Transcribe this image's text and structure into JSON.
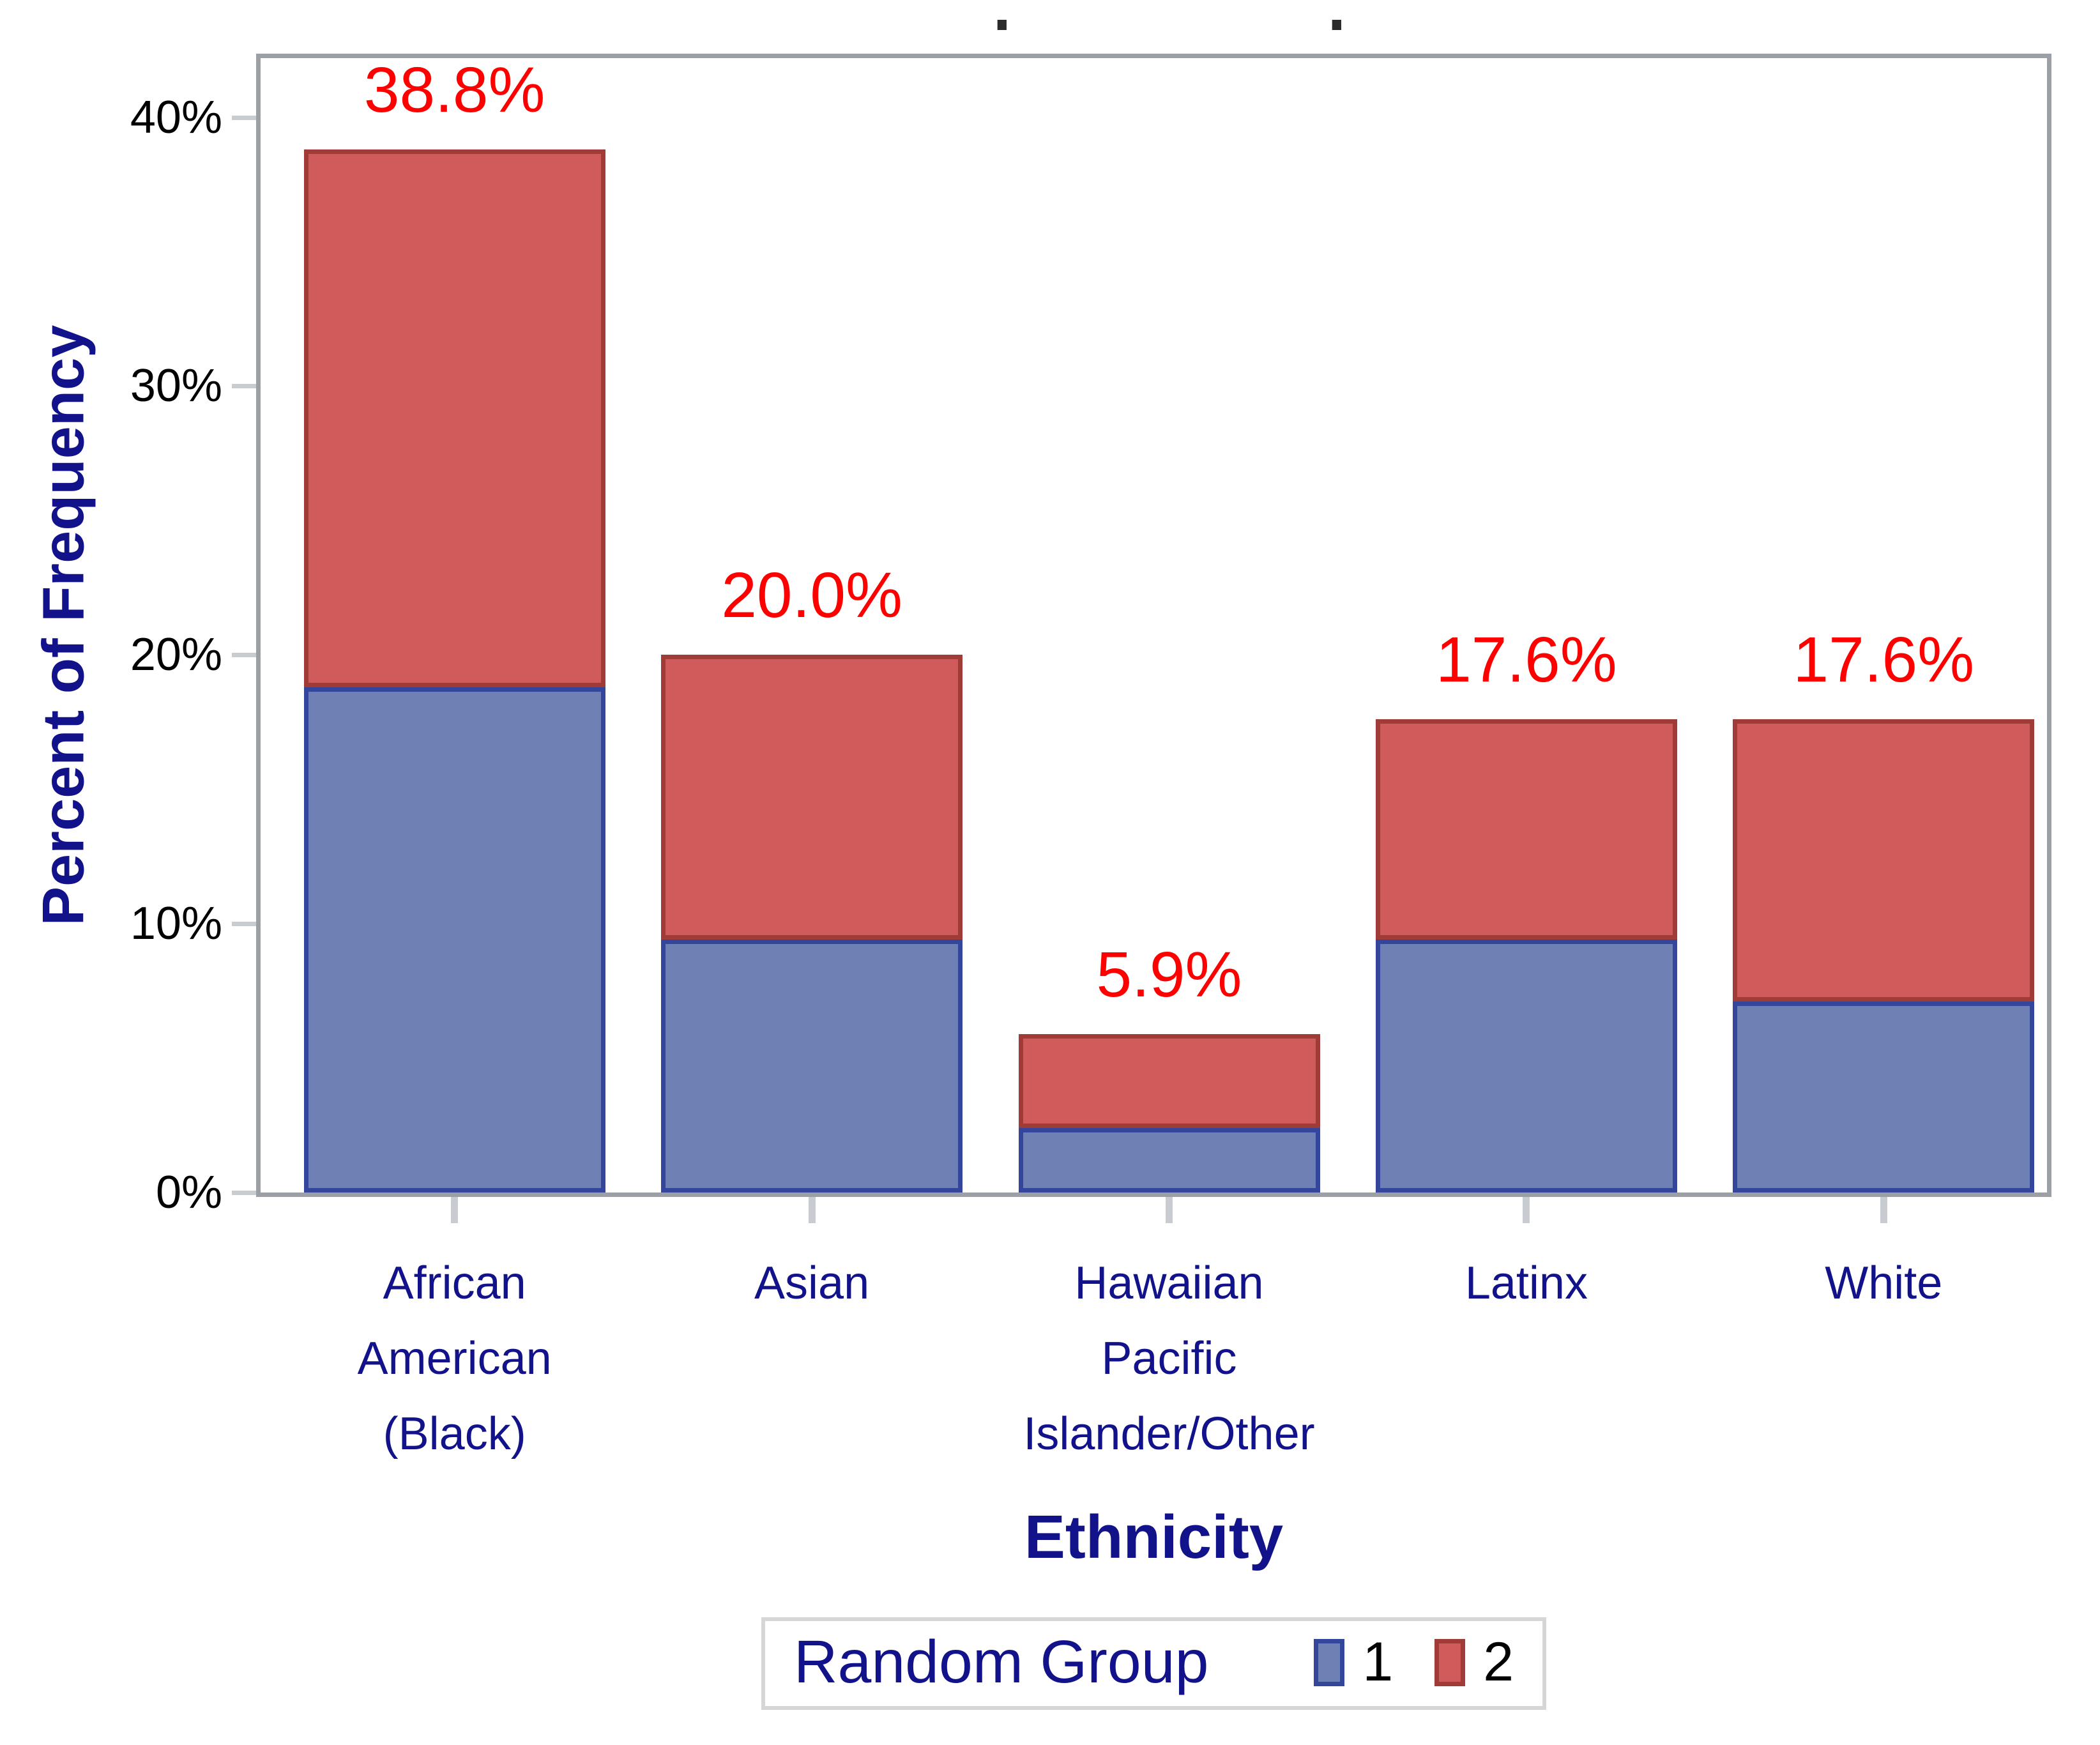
{
  "title_dots": [
    ".",
    "."
  ],
  "chart_data": {
    "type": "bar",
    "stacked": true,
    "title": "",
    "xlabel": "Ethnicity",
    "ylabel": "Percent of Frequency",
    "ylim": [
      0,
      42.2
    ],
    "grid": false,
    "legend_position": "bottom",
    "categories": [
      {
        "lines": [
          "African",
          "American",
          "(Black)"
        ]
      },
      {
        "lines": [
          "Asian"
        ]
      },
      {
        "lines": [
          "Hawaiian",
          "Pacific",
          "Islander/Other"
        ]
      },
      {
        "lines": [
          "Latinx"
        ]
      },
      {
        "lines": [
          "White"
        ]
      }
    ],
    "series": [
      {
        "name": "1",
        "values": [
          18.8,
          9.4,
          2.4,
          9.4,
          7.1
        ],
        "fill": "#6f80b4",
        "border": "#34459c"
      },
      {
        "name": "2",
        "values": [
          20.0,
          10.6,
          3.5,
          8.2,
          10.5
        ],
        "fill": "#cf5b5a",
        "border": "#a03c38"
      }
    ],
    "totals": [
      38.8,
      20.0,
      5.9,
      17.6,
      17.6
    ],
    "total_labels": [
      "38.8%",
      "20.0%",
      "5.9%",
      "17.6%",
      "17.6%"
    ],
    "total_label_color": "#ff0000",
    "yticks": [
      {
        "value": 0,
        "label": "0%"
      },
      {
        "value": 10,
        "label": "10%"
      },
      {
        "value": 20,
        "label": "20%"
      },
      {
        "value": 30,
        "label": "30%"
      },
      {
        "value": 40,
        "label": "40%"
      }
    ],
    "axis_text_color": "#000000",
    "category_text_color": "#12128a",
    "frame_color": "#9aa0a6",
    "tick_mark_color": "#c8ccd0",
    "legend": {
      "title": "Random Group",
      "entries": [
        {
          "label": "1",
          "fill": "#6f80b4",
          "border": "#34459c"
        },
        {
          "label": "2",
          "fill": "#cf5b5a",
          "border": "#a03c38"
        }
      ]
    }
  }
}
